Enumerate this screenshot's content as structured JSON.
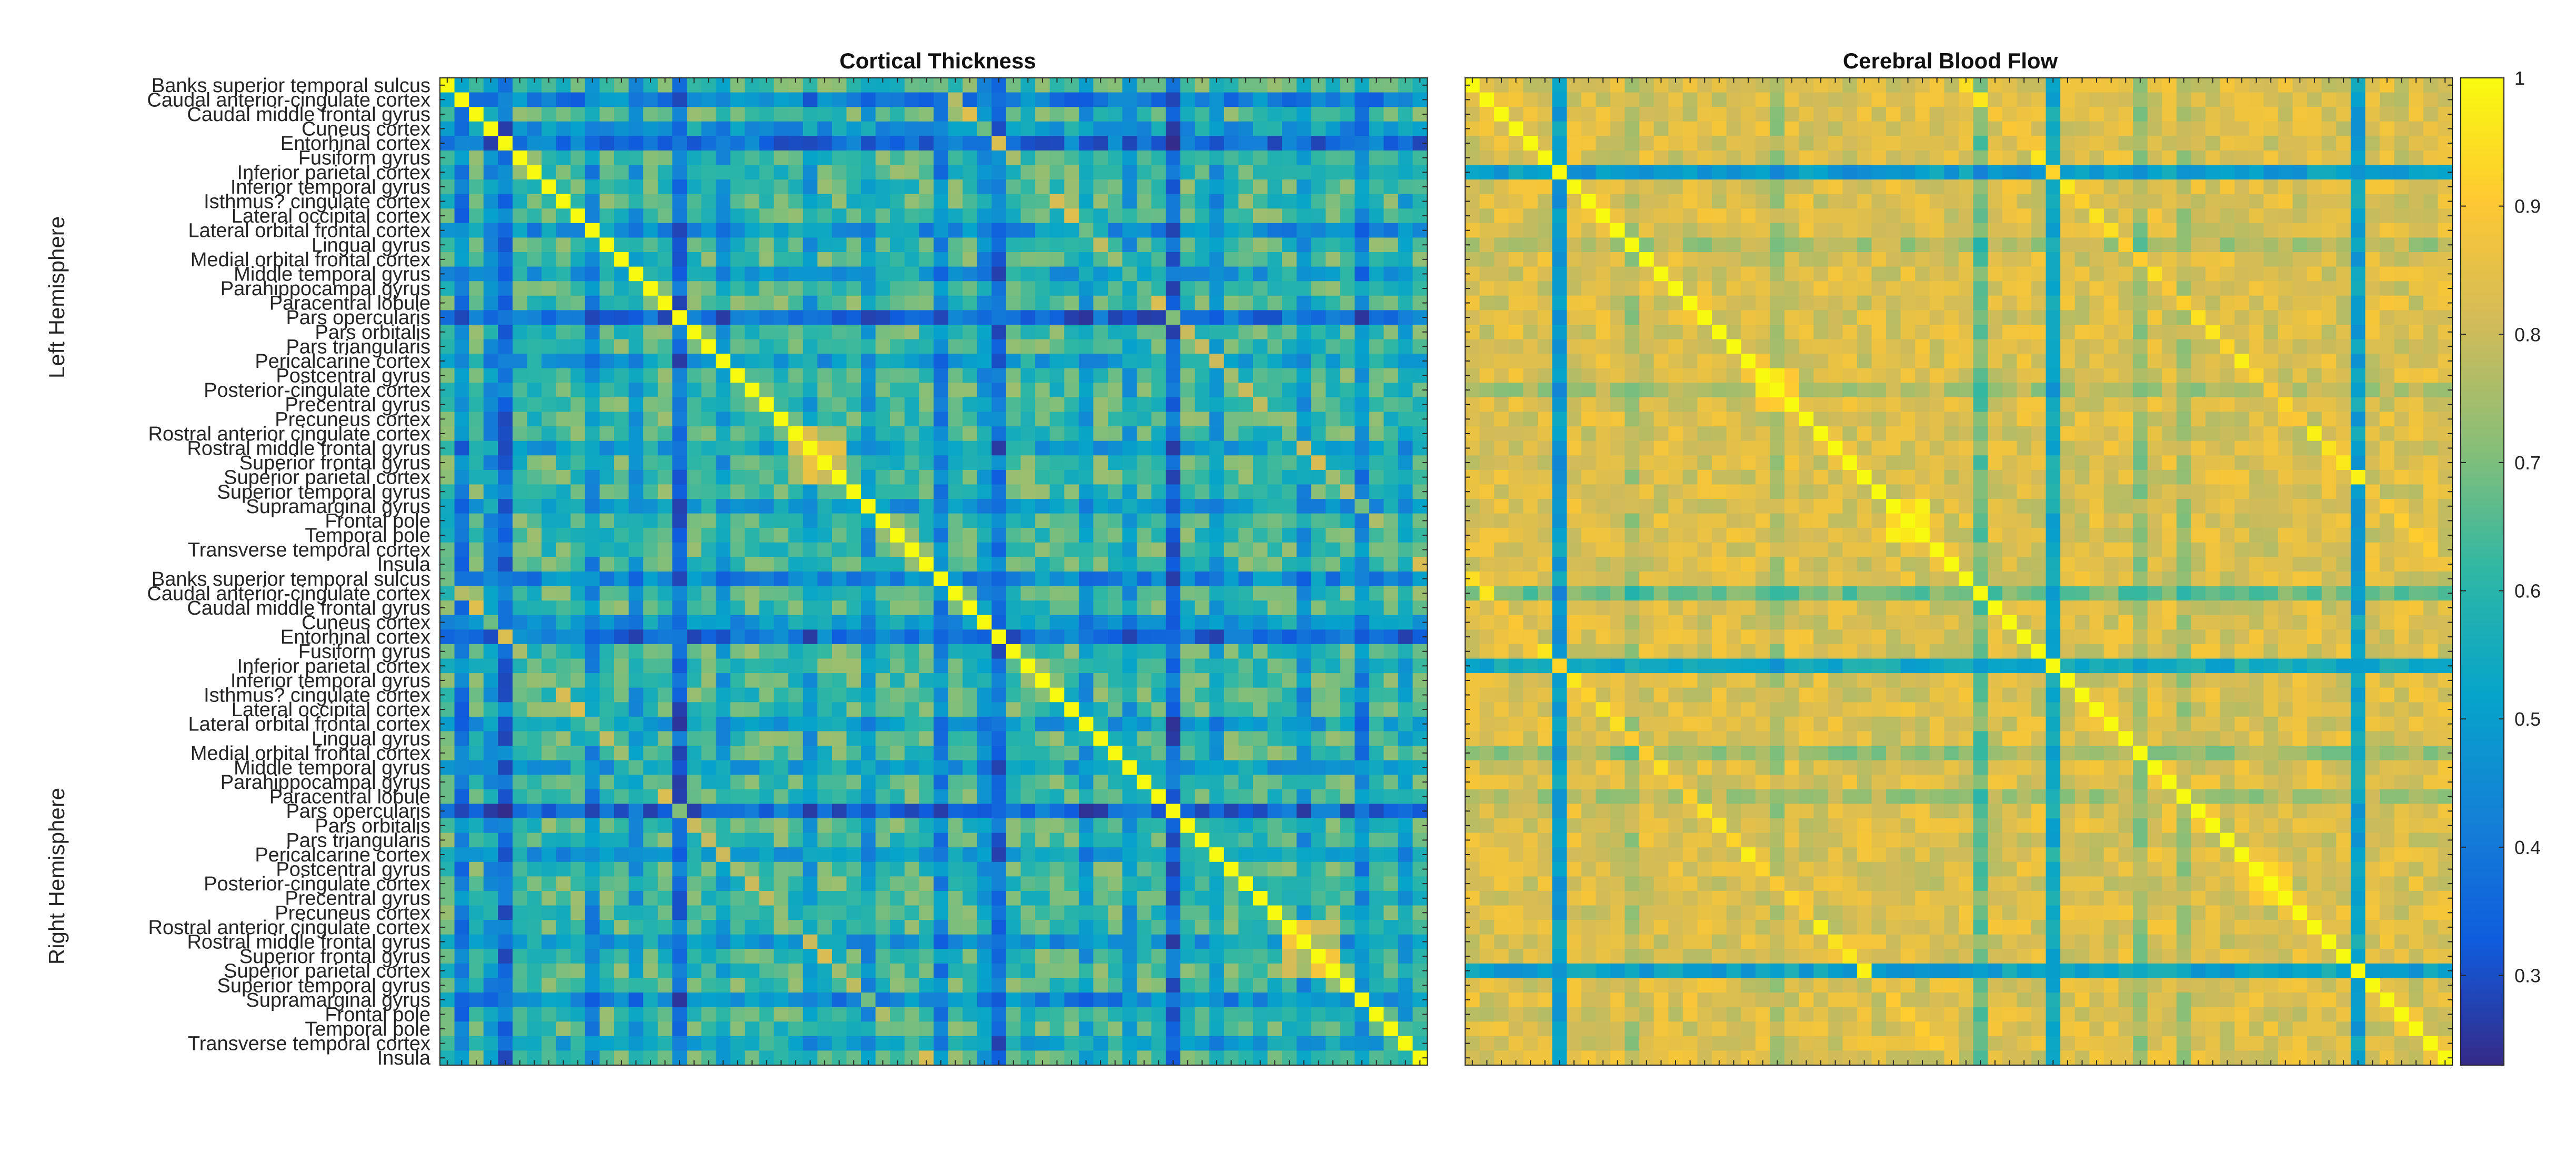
{
  "chart_data": [
    {
      "type": "heatmap",
      "title": "Cortical Thickness",
      "matrix_size": 68,
      "diagonal_value": 1,
      "base_value": 0.64,
      "weak_rows": [
        {
          "index": 1,
          "value": 0.42
        },
        {
          "index": 3,
          "value": 0.5
        },
        {
          "index": 4,
          "value": 0.38
        },
        {
          "index": 10,
          "value": 0.48
        },
        {
          "index": 13,
          "value": 0.52
        },
        {
          "index": 16,
          "value": 0.36
        },
        {
          "index": 19,
          "value": 0.52
        },
        {
          "index": 25,
          "value": 0.52
        },
        {
          "index": 29,
          "value": 0.5
        },
        {
          "index": 34,
          "value": 0.45
        },
        {
          "index": 37,
          "value": 0.5
        },
        {
          "index": 38,
          "value": 0.38
        },
        {
          "index": 44,
          "value": 0.52
        },
        {
          "index": 47,
          "value": 0.52
        },
        {
          "index": 50,
          "value": 0.36
        },
        {
          "index": 53,
          "value": 0.5
        },
        {
          "index": 59,
          "value": 0.5
        },
        {
          "index": 63,
          "value": 0.45
        },
        {
          "index": 66,
          "value": 0.55
        }
      ],
      "clusters": [
        {
          "start": 24,
          "end": 27,
          "value": 0.8
        },
        {
          "start": 58,
          "end": 61,
          "value": 0.8
        }
      ]
    },
    {
      "type": "heatmap",
      "title": "Cerebral Blood Flow",
      "matrix_size": 68,
      "diagonal_value": 1,
      "base_value": 0.83,
      "weak_rows": [
        {
          "index": 6,
          "value": 0.5
        },
        {
          "index": 40,
          "value": 0.55
        },
        {
          "index": 61,
          "value": 0.52
        },
        {
          "index": 35,
          "value": 0.68
        },
        {
          "index": 46,
          "value": 0.74
        },
        {
          "index": 11,
          "value": 0.76
        },
        {
          "index": 21,
          "value": 0.76
        },
        {
          "index": 49,
          "value": 0.76
        }
      ],
      "clusters": [
        {
          "start": 20,
          "end": 22,
          "value": 0.95
        },
        {
          "start": 29,
          "end": 31,
          "value": 0.93
        },
        {
          "start": 54,
          "end": 56,
          "value": 0.95
        }
      ]
    }
  ],
  "row_labels": [
    "Banks superior temporal sulcus",
    "Caudal anterior-cingulate cortex",
    "Caudal middle frontal gyrus",
    "Cuneus cortex",
    "Entorhinal cortex",
    "Fusiform gyrus",
    "Inferior parietal cortex",
    "Inferior temporal gyrus",
    "Isthmus? cingulate cortex",
    "Lateral occipital cortex",
    "Lateral orbital frontal cortex",
    "Lingual gyrus",
    "Medial orbital frontal cortex",
    "Middle temporal gyrus",
    "Parahippocampal gyrus",
    "Paracentral lobule",
    "Pars opercularis",
    "Pars orbitalis",
    "Pars triangularis",
    "Pericalcarine cortex",
    "Postcentral gyrus",
    "Posterior-cingulate cortex",
    "Precentral gyrus",
    "Precuneus cortex",
    "Rostral anterior cingulate cortex",
    "Rostral middle frontal gyrus",
    "Superior frontal gyrus",
    "Superior parietal cortex",
    "Superior temporal gyrus",
    "Supramarginal gyrus",
    "Frontal pole",
    "Temporal pole",
    "Transverse temporal cortex",
    "Insula",
    "Banks superior temporal sulcus",
    "Caudal anterior-cingulate cortex",
    "Caudal middle frontal gyrus",
    "Cuneus cortex",
    "Entorhinal cortex",
    "Fusiform gyrus",
    "Inferior parietal cortex",
    "Inferior temporal gyrus",
    "Isthmus? cingulate cortex",
    "Lateral occipital cortex",
    "Lateral orbital frontal cortex",
    "Lingual gyrus",
    "Medial orbital frontal cortex",
    "Middle temporal gyrus",
    "Parahippocampal gyrus",
    "Paracentral lobule",
    "Pars opercularis",
    "Pars orbitalis",
    "Pars triangularis",
    "Pericalcarine cortex",
    "Postcentral gyrus",
    "Posterior-cingulate cortex",
    "Precentral gyrus",
    "Precuneus cortex",
    "Rostral anterior cingulate cortex",
    "Rostral middle frontal gyrus",
    "Superior frontal gyrus",
    "Superior parietal cortex",
    "Superior temporal gyrus",
    "Supramarginal gyrus",
    "Frontal pole",
    "Temporal pole",
    "Transverse temporal cortex",
    "Insula"
  ],
  "group_labels": {
    "left": "Left Hemisphere",
    "right": "Right Hemisphere"
  },
  "colorbar": {
    "min": 0.23,
    "max": 1,
    "ticks": [
      0.3,
      0.4,
      0.5,
      0.6,
      0.7,
      0.8,
      0.9,
      1
    ],
    "tick_labels": [
      "0.3",
      "0.4",
      "0.5",
      "0.6",
      "0.7",
      "0.8",
      "0.9",
      "1"
    ],
    "colormap": "parula"
  },
  "colors": {
    "parula_stops": [
      "#352a87",
      "#0f5cdd",
      "#1481d6",
      "#06a4ca",
      "#2eb7a4",
      "#87bf77",
      "#d1bb59",
      "#fec832",
      "#f9fb0e"
    ],
    "axis": "#262626"
  }
}
